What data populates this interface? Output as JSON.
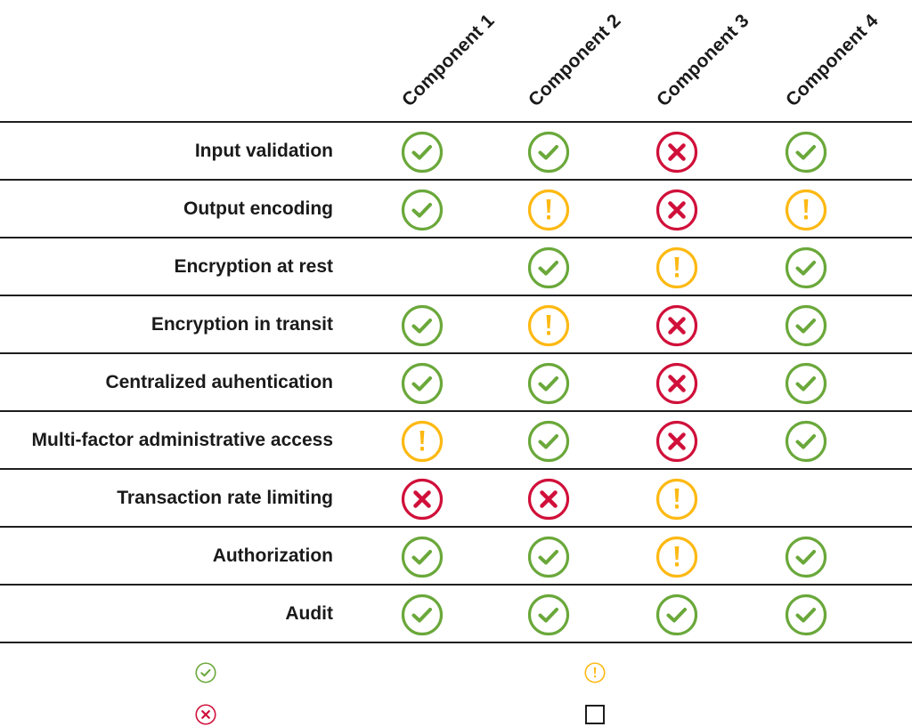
{
  "colors": {
    "pass": "#6aa83a",
    "warn": "#fdb913",
    "fail": "#d0103a",
    "line": "#1e1e1e",
    "text": "#1a1a1a"
  },
  "icons": {
    "pass": "check-circle-icon",
    "warn": "exclamation-circle-icon",
    "fail": "x-circle-icon",
    "none": "empty"
  },
  "chart_data": {
    "type": "table",
    "title": "",
    "columns": [
      "Component 1",
      "Component 2",
      "Component 3",
      "Component 4"
    ],
    "rows": [
      {
        "label": "Input validation",
        "values": [
          "pass",
          "pass",
          "fail",
          "pass"
        ]
      },
      {
        "label": "Output encoding",
        "values": [
          "pass",
          "warn",
          "fail",
          "warn"
        ]
      },
      {
        "label": "Encryption at rest",
        "values": [
          "none",
          "pass",
          "warn",
          "pass"
        ]
      },
      {
        "label": "Encryption in transit",
        "values": [
          "pass",
          "warn",
          "fail",
          "pass"
        ]
      },
      {
        "label": "Centralized auhentication",
        "values": [
          "pass",
          "pass",
          "fail",
          "pass"
        ]
      },
      {
        "label": "Multi-factor administrative access",
        "values": [
          "warn",
          "pass",
          "fail",
          "pass"
        ]
      },
      {
        "label": "Transaction rate limiting",
        "values": [
          "fail",
          "fail",
          "warn",
          "none"
        ]
      },
      {
        "label": "Authorization",
        "values": [
          "pass",
          "pass",
          "warn",
          "pass"
        ]
      },
      {
        "label": "Audit",
        "values": [
          "pass",
          "pass",
          "pass",
          "pass"
        ]
      }
    ],
    "legend": [
      {
        "symbol": "pass",
        "label": ""
      },
      {
        "symbol": "warn",
        "label": ""
      },
      {
        "symbol": "fail",
        "label": ""
      },
      {
        "symbol": "none",
        "label": ""
      }
    ],
    "grid": true
  }
}
